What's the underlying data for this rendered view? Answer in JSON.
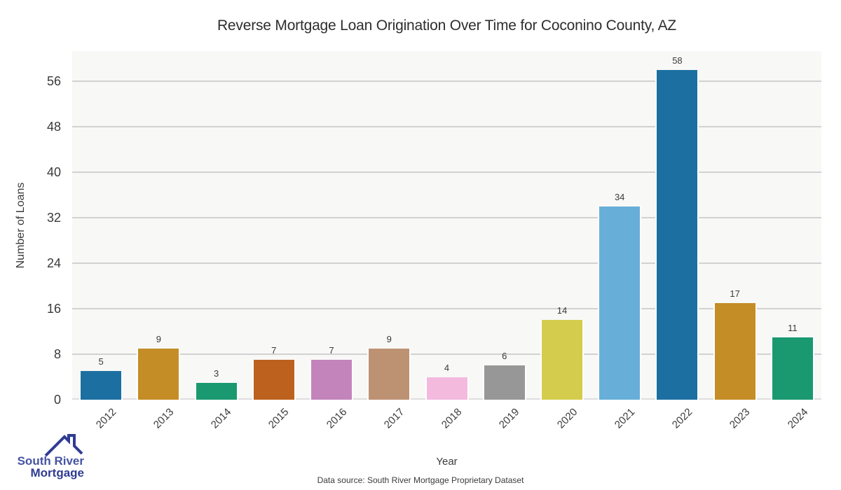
{
  "title": "Reverse Mortgage Loan Origination Over Time for Coconino County, AZ",
  "footer": "Data source: South River Mortgage Proprietary Dataset",
  "logo": {
    "line1": "South River",
    "line2": "Mortgage",
    "brand_color_1": "#4553a2",
    "brand_color_2": "#2f3c92"
  },
  "chart_data": {
    "type": "bar",
    "title": "Reverse Mortgage Loan Origination Over Time for Coconino County, AZ",
    "xlabel": "Year",
    "ylabel": "Number of Loans",
    "categories": [
      "2012",
      "2013",
      "2014",
      "2015",
      "2016",
      "2017",
      "2018",
      "2019",
      "2020",
      "2021",
      "2022",
      "2023",
      "2024"
    ],
    "values": [
      5,
      9,
      3,
      7,
      7,
      9,
      4,
      6,
      14,
      34,
      58,
      17,
      11
    ],
    "bar_colors": [
      "#1c6fa1",
      "#c48d26",
      "#1a9970",
      "#bc611e",
      "#c384bc",
      "#bd9273",
      "#f3bade",
      "#979797",
      "#d4cc4c",
      "#67afd8",
      "#1c6fa1",
      "#c48d26",
      "#1a9970"
    ],
    "yticks": [
      0,
      8,
      16,
      24,
      32,
      40,
      48,
      56
    ],
    "ylim": [
      0,
      61.3
    ],
    "grid": true,
    "legend": "none",
    "plot_bg": "#f8f8f7",
    "grid_color": "#d2d2d2",
    "label_color": "#3a3a3a"
  }
}
